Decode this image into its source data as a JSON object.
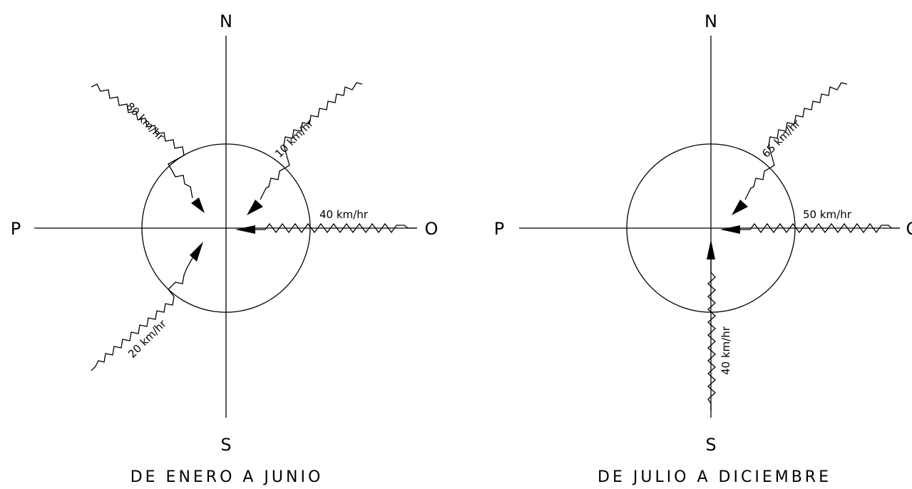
{
  "diagrams": [
    {
      "caption": "DE ENERO A JUNIO",
      "cardinals": {
        "north": "N",
        "south": "S",
        "west": "P",
        "east": "O"
      },
      "winds": [
        {
          "from": "NW",
          "speed": "80 km/hr"
        },
        {
          "from": "NE",
          "speed": "10 km/hr"
        },
        {
          "from": "E",
          "speed": "40 km/hr"
        },
        {
          "from": "SW",
          "speed": "20 km/hr"
        }
      ]
    },
    {
      "caption": "DE JULIO A DICIEMBRE",
      "cardinals": {
        "north": "N",
        "south": "S",
        "west": "P",
        "east": "O"
      },
      "winds": [
        {
          "from": "NE",
          "speed": "65 km/hr"
        },
        {
          "from": "E",
          "speed": "50 km/hr"
        },
        {
          "from": "S",
          "speed": "40 km/hr"
        }
      ]
    }
  ]
}
